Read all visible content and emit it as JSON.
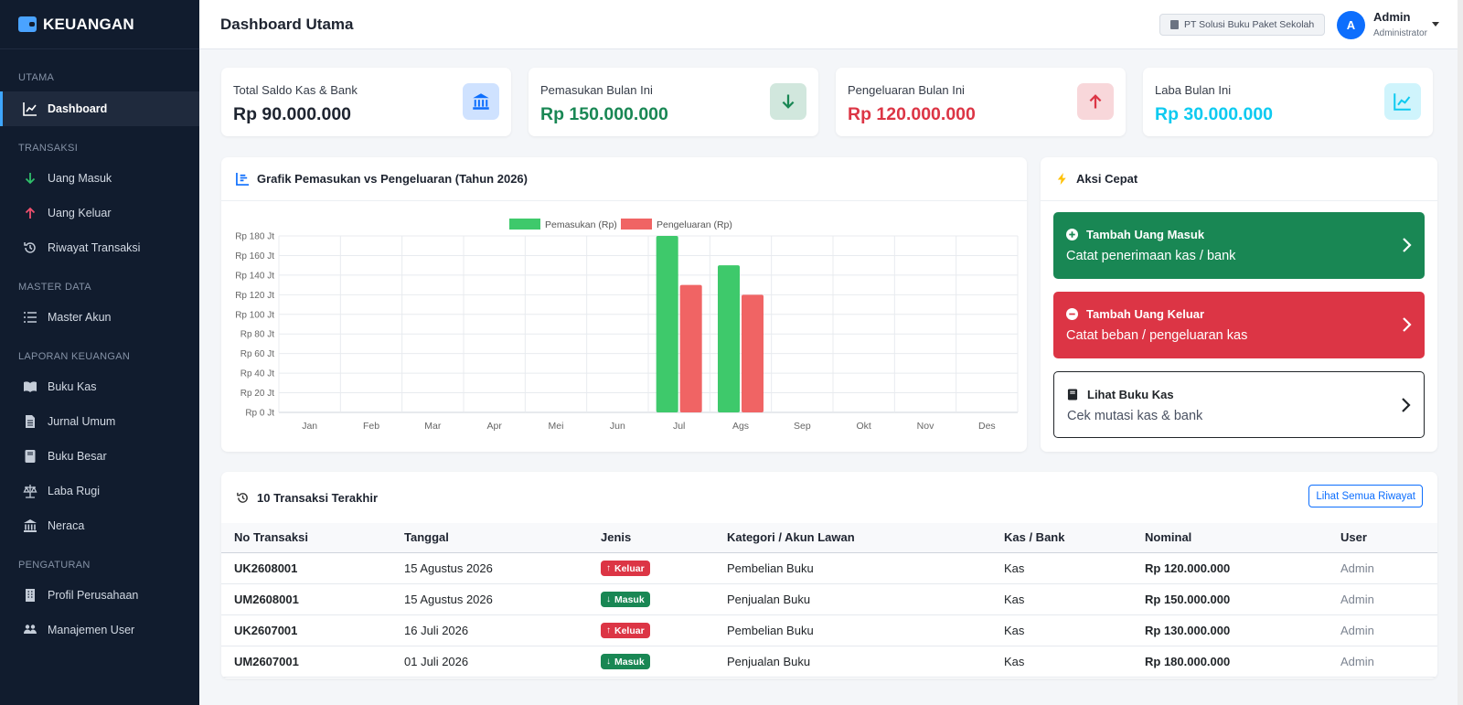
{
  "brand": {
    "name": "KEUANGAN"
  },
  "header": {
    "title": "Dashboard Utama",
    "company": "PT Solusi Buku Paket Sekolah",
    "user": {
      "initial": "A",
      "name": "Admin",
      "role": "Administrator"
    }
  },
  "sidebar": {
    "sections": [
      {
        "title": "UTAMA",
        "items": [
          {
            "label": "Dashboard",
            "icon": "chart-line-icon",
            "active": true
          }
        ]
      },
      {
        "title": "TRANSAKSI",
        "items": [
          {
            "label": "Uang Masuk",
            "icon": "arrow-down-icon"
          },
          {
            "label": "Uang Keluar",
            "icon": "arrow-up-icon"
          },
          {
            "label": "Riwayat Transaksi",
            "icon": "history-icon"
          }
        ]
      },
      {
        "title": "MASTER DATA",
        "items": [
          {
            "label": "Master Akun",
            "icon": "list-icon"
          }
        ]
      },
      {
        "title": "LAPORAN KEUANGAN",
        "items": [
          {
            "label": "Buku Kas",
            "icon": "book-open-icon"
          },
          {
            "label": "Jurnal Umum",
            "icon": "file-lines-icon"
          },
          {
            "label": "Buku Besar",
            "icon": "book-icon"
          },
          {
            "label": "Laba Rugi",
            "icon": "scale-icon"
          },
          {
            "label": "Neraca",
            "icon": "bank-icon"
          }
        ]
      },
      {
        "title": "PENGATURAN",
        "items": [
          {
            "label": "Profil Perusahaan",
            "icon": "building-icon"
          },
          {
            "label": "Manajemen User",
            "icon": "users-icon"
          }
        ]
      }
    ]
  },
  "stats": [
    {
      "label": "Total Saldo Kas & Bank",
      "value": "Rp 90.000.000",
      "color": "#1e2430",
      "icon": "bank-icon",
      "icon_bg": "#cfe2ff",
      "icon_color": "#0d6efd"
    },
    {
      "label": "Pemasukan Bulan Ini",
      "value": "Rp 150.000.000",
      "color": "#198754",
      "icon": "arrow-down-icon",
      "icon_bg": "#d1e7dd",
      "icon_color": "#198754"
    },
    {
      "label": "Pengeluaran Bulan Ini",
      "value": "Rp 120.000.000",
      "color": "#dc3545",
      "icon": "arrow-up-icon",
      "icon_bg": "#f8d7da",
      "icon_color": "#dc3545"
    },
    {
      "label": "Laba Bulan Ini",
      "value": "Rp 30.000.000",
      "color": "#0dcaf0",
      "icon": "chart-line-icon",
      "icon_bg": "#cff4fc",
      "icon_color": "#0dcaf0"
    }
  ],
  "chart_card": {
    "title": "Grafik Pemasukan vs Pengeluaran (Tahun 2026)"
  },
  "chart_data": {
    "type": "bar",
    "title": "",
    "categories": [
      "Jan",
      "Feb",
      "Mar",
      "Apr",
      "Mei",
      "Jun",
      "Jul",
      "Ags",
      "Sep",
      "Okt",
      "Nov",
      "Des"
    ],
    "series": [
      {
        "name": "Pemasukan (Rp)",
        "color": "#3ec96b",
        "values": [
          0,
          0,
          0,
          0,
          0,
          0,
          180,
          150,
          0,
          0,
          0,
          0
        ]
      },
      {
        "name": "Pengeluaran (Rp)",
        "color": "#f06464",
        "values": [
          0,
          0,
          0,
          0,
          0,
          0,
          130,
          120,
          0,
          0,
          0,
          0
        ]
      }
    ],
    "unit": "Jt",
    "yticks": [
      "Rp 0 Jt",
      "Rp 20 Jt",
      "Rp 40 Jt",
      "Rp 60 Jt",
      "Rp 80 Jt",
      "Rp 100 Jt",
      "Rp 120 Jt",
      "Rp 140 Jt",
      "Rp 160 Jt",
      "Rp 180 Jt"
    ],
    "ylim": [
      0,
      180
    ],
    "grid": true,
    "legend": "top-center"
  },
  "quick": {
    "title": "Aksi Cepat",
    "actions": [
      {
        "title": "Tambah Uang Masuk",
        "sub": "Catat penerimaan kas / bank"
      },
      {
        "title": "Tambah Uang Keluar",
        "sub": "Catat beban / pengeluaran kas"
      },
      {
        "title": "Lihat Buku Kas",
        "sub": "Cek mutasi kas & bank"
      }
    ]
  },
  "transactions": {
    "title": "10 Transaksi Terakhir",
    "view_all": "Lihat Semua Riwayat",
    "columns": [
      "No Transaksi",
      "Tanggal",
      "Jenis",
      "Kategori / Akun Lawan",
      "Kas / Bank",
      "Nominal",
      "User"
    ],
    "rows": [
      {
        "no": "UK2608001",
        "date": "15 Agustus 2026",
        "type": "Keluar",
        "category": "Pembelian Buku",
        "account": "Kas",
        "amount": "Rp 120.000.000",
        "user": "Admin"
      },
      {
        "no": "UM2608001",
        "date": "15 Agustus 2026",
        "type": "Masuk",
        "category": "Penjualan Buku",
        "account": "Kas",
        "amount": "Rp 150.000.000",
        "user": "Admin"
      },
      {
        "no": "UK2607001",
        "date": "16 Juli 2026",
        "type": "Keluar",
        "category": "Pembelian Buku",
        "account": "Kas",
        "amount": "Rp 130.000.000",
        "user": "Admin"
      },
      {
        "no": "UM2607001",
        "date": "01 Juli 2026",
        "type": "Masuk",
        "category": "Penjualan Buku",
        "account": "Kas",
        "amount": "Rp 180.000.000",
        "user": "Admin"
      }
    ]
  }
}
